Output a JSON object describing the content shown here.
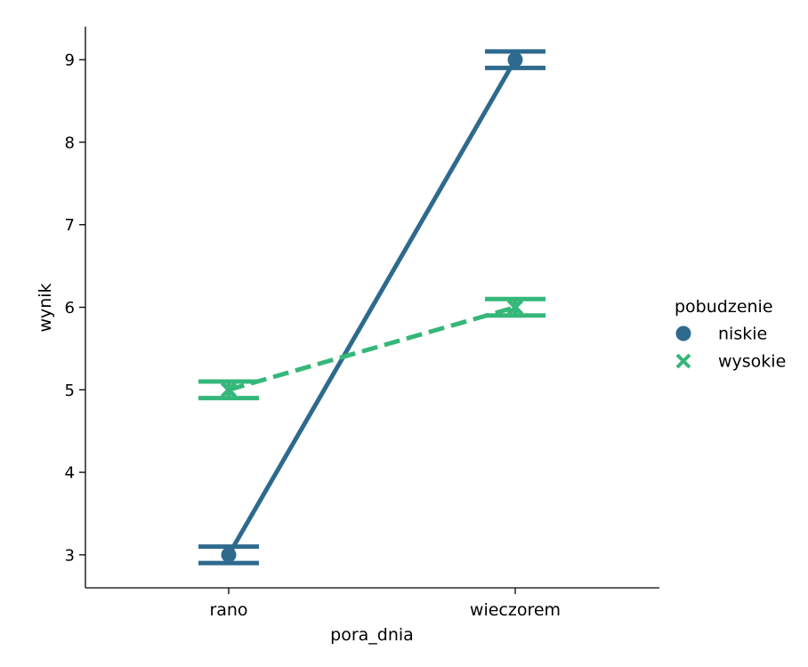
{
  "chart_data": {
    "type": "line",
    "title": "",
    "xlabel": "pora_dnia",
    "ylabel": "wynik",
    "categories": [
      "rano",
      "wieczorem"
    ],
    "yticks": [
      3,
      4,
      5,
      6,
      7,
      8,
      9
    ],
    "ylim": [
      2.6,
      9.4
    ],
    "grid": false,
    "legend": {
      "title": "pobudzenie",
      "placement": "right"
    },
    "series": [
      {
        "name": "niskie",
        "values": [
          3,
          9
        ],
        "error_low": [
          2.9,
          8.9
        ],
        "error_high": [
          3.1,
          9.1
        ],
        "marker": "circle",
        "linestyle": "solid",
        "color": "#2e6a8e"
      },
      {
        "name": "wysokie",
        "values": [
          5,
          6
        ],
        "error_low": [
          4.9,
          5.9
        ],
        "error_high": [
          5.1,
          6.1
        ],
        "marker": "x",
        "linestyle": "dashed",
        "color": "#35b779"
      }
    ]
  }
}
